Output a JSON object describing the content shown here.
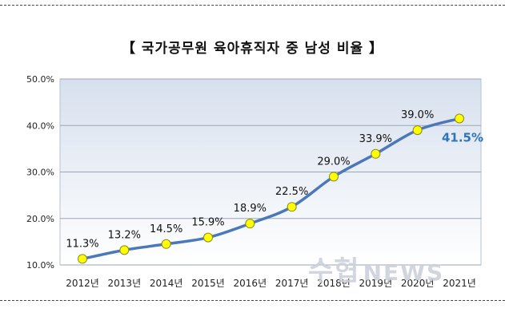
{
  "chart_data": {
    "type": "line",
    "title": "【 국가공무원 육아휴직자 중 남성 비율 】",
    "categories": [
      "2012년",
      "2013년",
      "2014년",
      "2015년",
      "2016년",
      "2017년",
      "2018년",
      "2019년",
      "2020년",
      "2021년"
    ],
    "series": [
      {
        "values": [
          11.3,
          13.2,
          14.5,
          15.9,
          18.9,
          22.5,
          29.0,
          33.9,
          39.0,
          41.5
        ]
      }
    ],
    "data_labels": [
      "11.3%",
      "13.2%",
      "14.5%",
      "15.9%",
      "18.9%",
      "22.5%",
      "29.0%",
      "33.9%",
      "39.0%",
      "41.5%"
    ],
    "yticks": [
      "10.0%",
      "20.0%",
      "30.0%",
      "40.0%",
      "50.0%"
    ],
    "ylim": [
      10,
      50
    ],
    "grid": true,
    "colors": {
      "line": "#4a78b8",
      "marker": "#ffff00",
      "highlight_label": "#2e75b6"
    }
  },
  "watermark": {
    "main": "수협",
    "sub": "NEWS"
  }
}
